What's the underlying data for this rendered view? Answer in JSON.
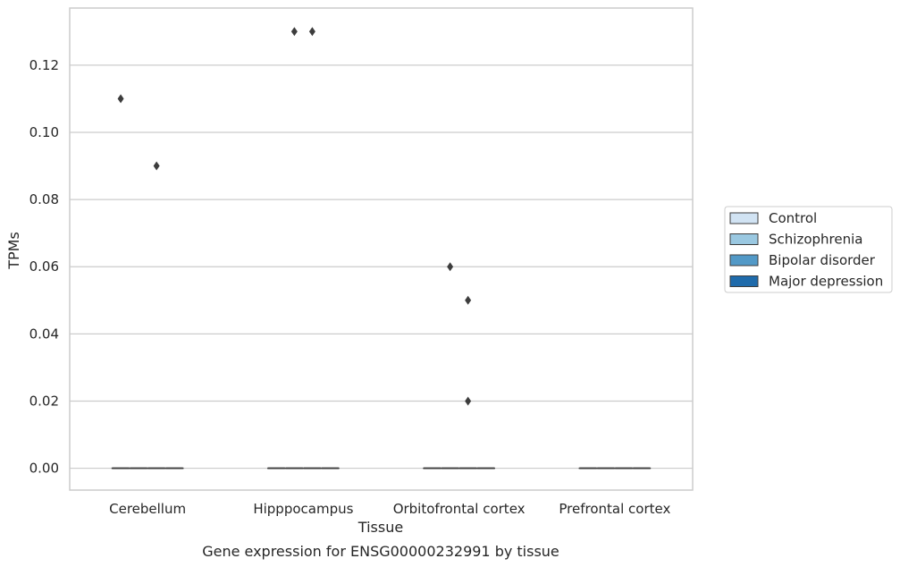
{
  "chart_data": {
    "type": "box",
    "title": "Gene expression for ENSG00000232991 by tissue",
    "xlabel": "Tissue",
    "ylabel": "TPMs",
    "ylim": [
      -0.0065,
      0.137
    ],
    "y_ticks": [
      "0.00",
      "0.02",
      "0.04",
      "0.06",
      "0.08",
      "0.10",
      "0.12"
    ],
    "y_tick_values": [
      0,
      0.02,
      0.04,
      0.06,
      0.08,
      0.1,
      0.12
    ],
    "grid": true,
    "legend_position": "right",
    "categories": [
      "Cerebellum",
      "Hipppocampus",
      "Orbitofrontal cortex",
      "Prefrontal cortex"
    ],
    "series": [
      {
        "name": "Control",
        "color": "#d1e3f3",
        "boxes": [
          {
            "median": 0,
            "q1": 0,
            "q3": 0,
            "outliers": [
              0.11
            ]
          },
          {
            "median": 0,
            "q1": 0,
            "q3": 0,
            "outliers": []
          },
          {
            "median": 0,
            "q1": 0,
            "q3": 0,
            "outliers": []
          },
          {
            "median": 0,
            "q1": 0,
            "q3": 0,
            "outliers": []
          }
        ]
      },
      {
        "name": "Schizophrenia",
        "color": "#9ac8e1",
        "boxes": [
          {
            "median": 0,
            "q1": 0,
            "q3": 0,
            "outliers": []
          },
          {
            "median": 0,
            "q1": 0,
            "q3": 0,
            "outliers": [
              0.13
            ]
          },
          {
            "median": 0,
            "q1": 0,
            "q3": 0,
            "outliers": [
              0.06
            ]
          },
          {
            "median": 0,
            "q1": 0,
            "q3": 0,
            "outliers": []
          }
        ]
      },
      {
        "name": "Bipolar disorder",
        "color": "#5299c7",
        "boxes": [
          {
            "median": 0,
            "q1": 0,
            "q3": 0,
            "outliers": [
              0.09
            ]
          },
          {
            "median": 0,
            "q1": 0,
            "q3": 0,
            "outliers": [
              0.13
            ]
          },
          {
            "median": 0,
            "q1": 0,
            "q3": 0,
            "outliers": [
              0.05,
              0.02
            ]
          },
          {
            "median": 0,
            "q1": 0,
            "q3": 0,
            "outliers": []
          }
        ]
      },
      {
        "name": "Major depression",
        "color": "#1f6bab",
        "boxes": [
          {
            "median": 0,
            "q1": 0,
            "q3": 0,
            "outliers": []
          },
          {
            "median": 0,
            "q1": 0,
            "q3": 0,
            "outliers": []
          },
          {
            "median": 0,
            "q1": 0,
            "q3": 0,
            "outliers": []
          },
          {
            "median": 0,
            "q1": 0,
            "q3": 0,
            "outliers": []
          }
        ]
      }
    ]
  }
}
